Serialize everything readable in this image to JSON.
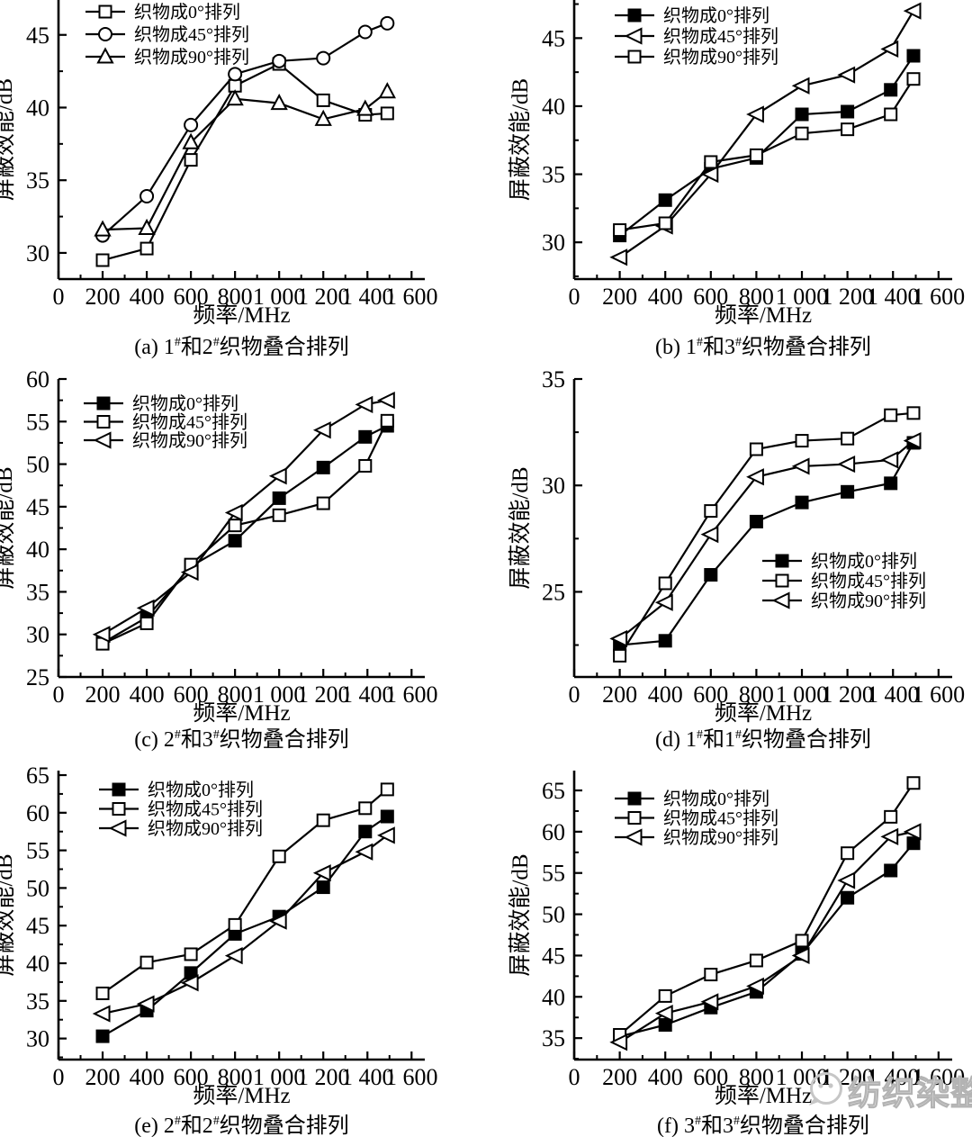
{
  "watermark": {
    "text": "纺织染整",
    "icon": "wechat-chat-bubble-icon",
    "color": "#c9c9c9"
  },
  "x_axis": {
    "label": "频率/MHz",
    "tick_values": [
      0,
      200,
      400,
      600,
      800,
      1000,
      1200,
      1400,
      1600
    ],
    "tick_labels": [
      "0",
      "200",
      "400",
      "600",
      "800",
      "1 000",
      "1 200",
      "1 400",
      "1 600"
    ],
    "lim": [
      0,
      1660
    ],
    "minor_step": 100
  },
  "y_axis_label": "屏蔽效能/dB",
  "chart_data": [
    {
      "id": "a",
      "type": "line",
      "caption": "(a) 1#和2#织物叠合排列",
      "xlabel": "频率/MHz",
      "ylabel": "屏蔽效能/dB",
      "x": [
        200,
        400,
        600,
        800,
        1000,
        1200,
        1390,
        1490
      ],
      "ylim": [
        28.2,
        47.4
      ],
      "yticks": [
        30,
        35,
        40,
        45
      ],
      "legend_position": "top-left",
      "series": [
        {
          "name": "织物成0°排列",
          "marker": "square-open",
          "values": [
            29.5,
            30.3,
            36.4,
            41.5,
            43.0,
            40.5,
            39.5,
            39.6
          ]
        },
        {
          "name": "织物成45°排列",
          "marker": "circle-open",
          "values": [
            31.2,
            33.9,
            38.8,
            42.3,
            43.2,
            43.4,
            45.2,
            45.8
          ]
        },
        {
          "name": "织物成90°排列",
          "marker": "triangle-up-open",
          "values": [
            31.6,
            31.7,
            37.6,
            40.6,
            40.3,
            39.2,
            39.9,
            41.1
          ]
        }
      ]
    },
    {
      "id": "b",
      "type": "line",
      "caption": "(b) 1#和3#织物叠合排列",
      "xlabel": "频率/MHz",
      "ylabel": "屏蔽效能/dB",
      "x": [
        200,
        400,
        600,
        800,
        1000,
        1200,
        1390,
        1490
      ],
      "ylim": [
        27.3,
        47.8
      ],
      "yticks": [
        30,
        35,
        40,
        45
      ],
      "legend_position": "top-left",
      "series": [
        {
          "name": "织物成0°排列",
          "marker": "square-filled",
          "values": [
            30.5,
            33.1,
            35.4,
            36.2,
            39.4,
            39.6,
            41.2,
            43.7
          ]
        },
        {
          "name": "织物成45°排列",
          "marker": "triangle-left-open",
          "values": [
            28.9,
            31.2,
            35.0,
            39.4,
            41.5,
            42.3,
            44.2,
            47.0
          ]
        },
        {
          "name": "织物成90°排列",
          "marker": "square-open",
          "values": [
            30.9,
            31.4,
            35.9,
            36.4,
            38.0,
            38.3,
            39.4,
            42.0
          ]
        }
      ]
    },
    {
      "id": "c",
      "type": "line",
      "caption": "(c) 2#和3#织物叠合排列",
      "xlabel": "频率/MHz",
      "ylabel": "屏蔽效能/dB",
      "x": [
        200,
        400,
        600,
        800,
        1000,
        1200,
        1390,
        1490
      ],
      "ylim": [
        25,
        60
      ],
      "yticks": [
        25,
        30,
        35,
        40,
        45,
        50,
        55,
        60
      ],
      "legend_position": "top-left",
      "series": [
        {
          "name": "织物成0°排列",
          "marker": "square-filled",
          "values": [
            29.0,
            32.0,
            38.0,
            41.0,
            46.0,
            49.6,
            53.2,
            54.5
          ]
        },
        {
          "name": "织物成45°排列",
          "marker": "square-open",
          "values": [
            28.9,
            31.3,
            38.2,
            42.8,
            44.0,
            45.4,
            49.8,
            55.1
          ]
        },
        {
          "name": "织物成90°排列",
          "marker": "triangle-left-open",
          "values": [
            30.0,
            33.1,
            37.3,
            44.3,
            48.6,
            54.0,
            57.0,
            57.5
          ]
        }
      ]
    },
    {
      "id": "d",
      "type": "line",
      "caption": "(d) 1#和1#织物叠合排列",
      "xlabel": "频率/MHz",
      "ylabel": "屏蔽效能/dB",
      "x": [
        200,
        400,
        600,
        800,
        1000,
        1200,
        1390,
        1490
      ],
      "ylim": [
        21,
        35
      ],
      "yticks": [
        25,
        30,
        35
      ],
      "legend_position": "middle-right",
      "series": [
        {
          "name": "织物成0°排列",
          "marker": "square-filled",
          "values": [
            22.5,
            22.7,
            25.8,
            28.3,
            29.2,
            29.7,
            30.1,
            32.0
          ]
        },
        {
          "name": "织物成45°排列",
          "marker": "square-open",
          "values": [
            22.0,
            25.4,
            28.8,
            31.7,
            32.1,
            32.2,
            33.3,
            33.4
          ]
        },
        {
          "name": "织物成90°排列",
          "marker": "triangle-left-open",
          "values": [
            22.8,
            24.5,
            27.7,
            30.4,
            30.9,
            31.0,
            31.2,
            32.1
          ]
        }
      ]
    },
    {
      "id": "e",
      "type": "line",
      "caption": "(e) 2#和2#织物叠合排列",
      "xlabel": "频率/MHz",
      "ylabel": "屏蔽效能/dB",
      "x": [
        200,
        400,
        600,
        800,
        1000,
        1200,
        1390,
        1490
      ],
      "ylim": [
        27.2,
        65.6
      ],
      "yticks": [
        30,
        35,
        40,
        45,
        50,
        55,
        60,
        65
      ],
      "legend_position": "top-left",
      "series": [
        {
          "name": "织物成0°排列",
          "marker": "square-filled",
          "values": [
            30.3,
            33.7,
            38.7,
            43.9,
            46.2,
            50.1,
            57.5,
            59.5
          ]
        },
        {
          "name": "织物成45°排列",
          "marker": "square-open",
          "values": [
            36.0,
            40.1,
            41.2,
            45.1,
            54.2,
            59.0,
            60.6,
            63.1
          ]
        },
        {
          "name": "织物成90°排列",
          "marker": "triangle-left-open",
          "values": [
            33.3,
            34.6,
            37.4,
            41.0,
            45.6,
            52.0,
            54.8,
            57.0
          ]
        }
      ]
    },
    {
      "id": "f",
      "type": "line",
      "caption": "(f) 3#和3#织物叠合排列",
      "xlabel": "频率/MHz",
      "ylabel": "屏蔽效能/dB",
      "x": [
        200,
        400,
        600,
        800,
        1000,
        1200,
        1390,
        1490
      ],
      "ylim": [
        32.4,
        67.4
      ],
      "yticks": [
        35,
        40,
        45,
        50,
        55,
        60,
        65
      ],
      "legend_position": "top-left",
      "series": [
        {
          "name": "织物成0°排列",
          "marker": "square-filled",
          "values": [
            35.2,
            36.6,
            38.7,
            40.6,
            45.2,
            52.0,
            55.3,
            58.6
          ]
        },
        {
          "name": "织物成45°排列",
          "marker": "square-open",
          "values": [
            35.4,
            40.1,
            42.7,
            44.4,
            46.8,
            57.4,
            61.8,
            65.9
          ]
        },
        {
          "name": "织物成90°排列",
          "marker": "triangle-left-open",
          "values": [
            34.5,
            38.0,
            39.4,
            41.3,
            45.0,
            54.1,
            59.4,
            60.0
          ]
        }
      ]
    }
  ]
}
